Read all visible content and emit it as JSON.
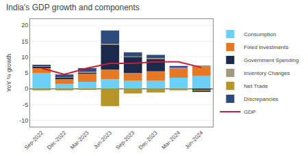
{
  "chart_data": {
    "type": "bar",
    "title": "India's GDP growth and components",
    "categories": [
      "Sep-2022",
      "Dec-2022",
      "Mar-2023",
      "Jun-2023",
      "Sep-2023",
      "Dec-2023",
      "Mar-2024",
      "Jun-2024"
    ],
    "series": [
      {
        "name": "Consumption",
        "color": "#6dcff6",
        "values": [
          5.0,
          1.5,
          2.2,
          3.0,
          2.5,
          2.5,
          3.5,
          4.0
        ]
      },
      {
        "name": "Fixed Investments",
        "color": "#e87722",
        "values": [
          1.5,
          1.5,
          2.5,
          3.0,
          2.5,
          3.0,
          3.0,
          3.0
        ]
      },
      {
        "name": "Government Spending",
        "color": "#1b2a4a",
        "values": [
          0.5,
          0.5,
          0.5,
          8.0,
          5.0,
          4.0,
          0.0,
          -0.3
        ]
      },
      {
        "name": "Inventory Changes",
        "color": "#a09880",
        "values": [
          0.2,
          0.2,
          0.2,
          0.2,
          0.2,
          0.2,
          0.2,
          0.2
        ]
      },
      {
        "name": "Net Trade",
        "color": "#b5952a",
        "values": [
          -0.5,
          -0.5,
          -0.3,
          -5.5,
          -1.5,
          -1.2,
          -0.5,
          -0.5
        ]
      },
      {
        "name": "Discrepancies",
        "color": "#2e4a7a",
        "values": [
          0.3,
          0.8,
          1.1,
          4.2,
          1.3,
          1.0,
          0.5,
          -0.2
        ]
      },
      {
        "name": "GDP",
        "type": "line",
        "color": "#cc1a33",
        "values": [
          6.5,
          4.5,
          6.5,
          8.0,
          8.0,
          8.5,
          8.5,
          6.7
        ]
      }
    ],
    "stacked": true,
    "ylabel": "YoY % growth",
    "ylim": [
      -12,
      22
    ],
    "yticks": [
      -10,
      -5,
      0,
      5,
      10,
      15,
      20
    ],
    "grid": true,
    "legend": "right"
  }
}
